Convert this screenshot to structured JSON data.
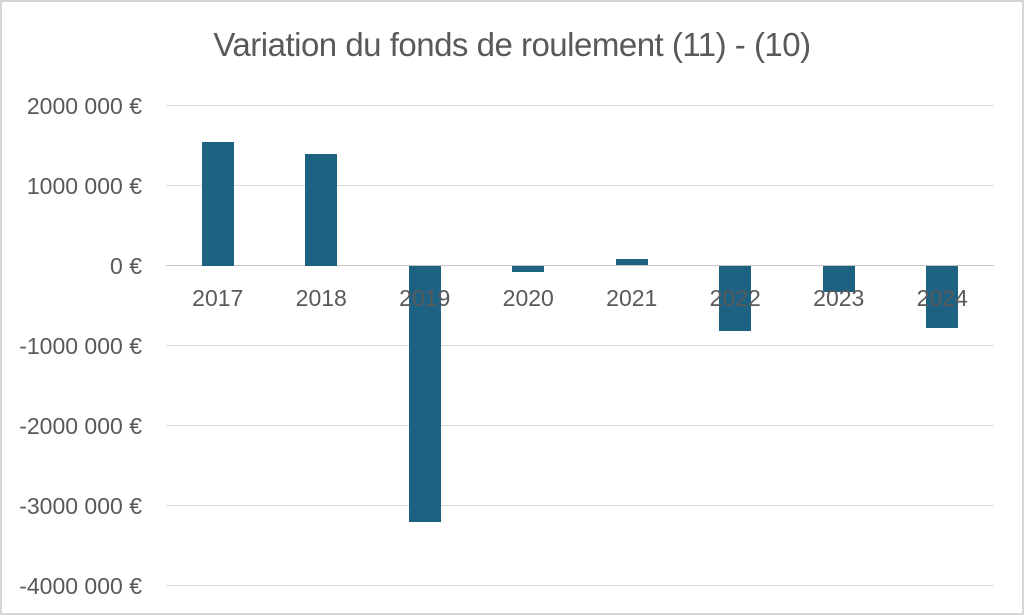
{
  "chart_data": {
    "type": "bar",
    "title": "Variation du fonds de roulement (11) - (10)",
    "categories": [
      "2017",
      "2018",
      "2019",
      "2020",
      "2021",
      "2022",
      "2023",
      "2024"
    ],
    "values": [
      1550000,
      1400000,
      -3200000,
      -80000,
      80000,
      -820000,
      -330000,
      -780000
    ],
    "unit": "€",
    "xlabel": "",
    "ylabel": "",
    "ylim": [
      -4000000,
      2000000
    ],
    "y_tick_step": 1000000,
    "y_ticks": [
      {
        "value": 2000000,
        "label": "2000 000 €"
      },
      {
        "value": 1000000,
        "label": "1000 000 €"
      },
      {
        "value": 0,
        "label": "0 €"
      },
      {
        "value": -1000000,
        "label": "-1000 000 €"
      },
      {
        "value": -2000000,
        "label": "-2000 000 €"
      },
      {
        "value": -3000000,
        "label": "-3000 000 €"
      },
      {
        "value": -4000000,
        "label": "-4000 000 €"
      }
    ],
    "grid": true,
    "legend_position": "none",
    "colors": {
      "bar": "#1d6183",
      "text": "#595959",
      "gridline": "#d9d9d9",
      "zero_axis": "#c6c6c6",
      "background": "#ffffff",
      "frame_border": "#d6d6d6"
    }
  }
}
